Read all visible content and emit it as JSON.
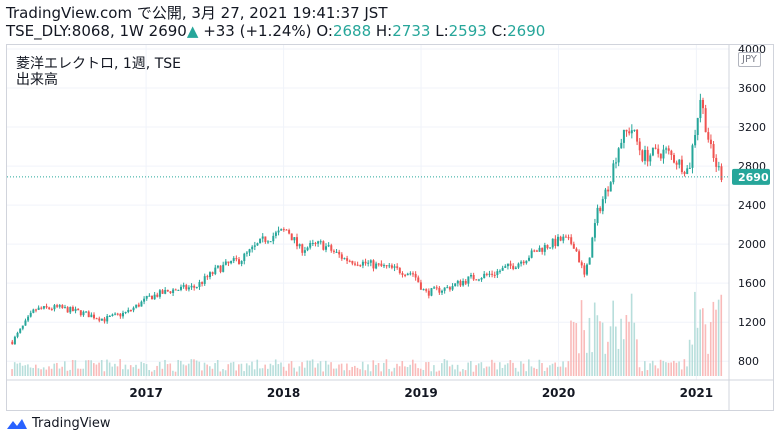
{
  "header": {
    "line1": "TradingView.com で公開, 3月 27, 2021 19:41:37 JST",
    "symbol": "TSE_DLY:8068, 1W",
    "price": "2690",
    "arrow": "▲",
    "change": "+33 (+1.24%)",
    "o_label": "O:",
    "o_value": "2688",
    "h_label": "H:",
    "h_value": "2733",
    "l_label": "L:",
    "l_value": "2593",
    "c_label": "C:",
    "c_value": "2690"
  },
  "legend": {
    "title": "菱洋エレクトロ, 1週, TSE",
    "volume_label": "出来高"
  },
  "currency": "JPY",
  "last_price_tag": "2690",
  "footer": {
    "brand": "TradingView"
  },
  "colors": {
    "up": "#26a69a",
    "down": "#ef5350",
    "grid": "#f0f3fa",
    "axis_text": "#131722"
  },
  "chart_data": {
    "type": "candlestick",
    "x_ticks": [
      "2017",
      "2018",
      "2019",
      "2020",
      "2021"
    ],
    "y_ticks": [
      4000,
      3600,
      3200,
      2800,
      2400,
      2000,
      1600,
      1200,
      800
    ],
    "ylim": [
      700,
      4000
    ],
    "last_price": 2690,
    "grid": true,
    "series": [
      {
        "date": "2016-01",
        "close": 1000
      },
      {
        "date": "2016-03",
        "close": 1330
      },
      {
        "date": "2016-05",
        "close": 1350
      },
      {
        "date": "2016-07",
        "close": 1300
      },
      {
        "date": "2016-09",
        "close": 1230
      },
      {
        "date": "2016-11",
        "close": 1300
      },
      {
        "date": "2017-01",
        "close": 1460
      },
      {
        "date": "2017-03",
        "close": 1530
      },
      {
        "date": "2017-05",
        "close": 1560
      },
      {
        "date": "2017-07",
        "close": 1750
      },
      {
        "date": "2017-09",
        "close": 1850
      },
      {
        "date": "2017-11",
        "close": 2050
      },
      {
        "date": "2018-01",
        "close": 2150
      },
      {
        "date": "2018-02",
        "close": 1950
      },
      {
        "date": "2018-04",
        "close": 2000
      },
      {
        "date": "2018-06",
        "close": 1850
      },
      {
        "date": "2018-08",
        "close": 1800
      },
      {
        "date": "2018-10",
        "close": 1750
      },
      {
        "date": "2018-12",
        "close": 1700
      },
      {
        "date": "2019-01",
        "close": 1500
      },
      {
        "date": "2019-03",
        "close": 1550
      },
      {
        "date": "2019-05",
        "close": 1650
      },
      {
        "date": "2019-07",
        "close": 1700
      },
      {
        "date": "2019-09",
        "close": 1800
      },
      {
        "date": "2019-11",
        "close": 1950
      },
      {
        "date": "2020-01",
        "close": 2050
      },
      {
        "date": "2020-02",
        "close": 2000
      },
      {
        "date": "2020-03",
        "close": 1650
      },
      {
        "date": "2020-04",
        "close": 2300
      },
      {
        "date": "2020-05",
        "close": 2600
      },
      {
        "date": "2020-06",
        "close": 3050
      },
      {
        "date": "2020-07",
        "close": 3200
      },
      {
        "date": "2020-08",
        "close": 2900
      },
      {
        "date": "2020-10",
        "close": 2950
      },
      {
        "date": "2020-12",
        "close": 2750
      },
      {
        "date": "2021-01",
        "close": 3500
      },
      {
        "date": "2021-02",
        "close": 2900
      },
      {
        "date": "2021-03",
        "close": 2690
      }
    ]
  }
}
